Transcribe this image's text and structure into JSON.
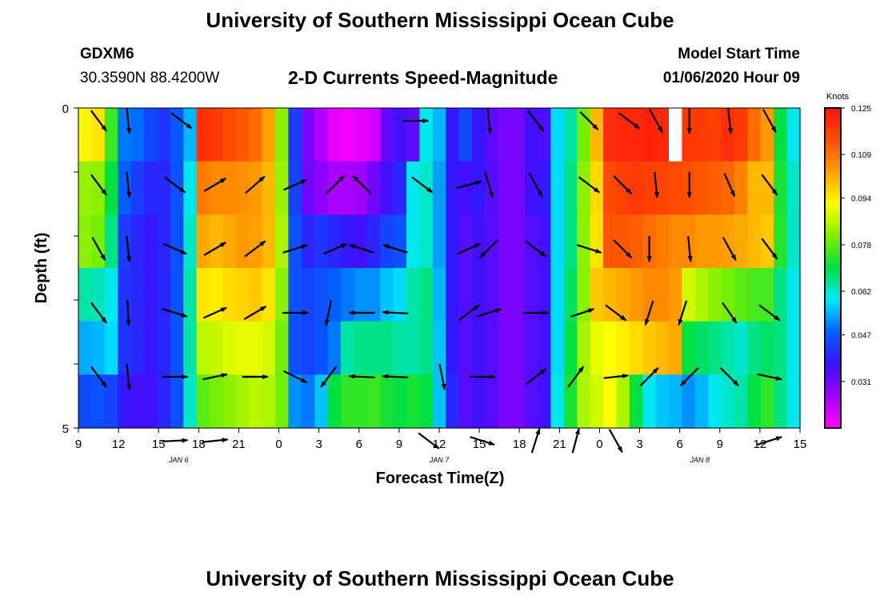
{
  "header": {
    "title_top": "University of Southern Mississippi Ocean Cube",
    "title_bottom": "University of Southern Mississippi Ocean Cube",
    "station": "GDXM6",
    "coords": "30.3590N 88.4200W",
    "subtitle": "2-D Currents Speed-Magnitude",
    "start_label": "Model Start Time",
    "start_value": "01/06/2020 Hour 09"
  },
  "chart_data": {
    "type": "heatmap",
    "title": "2-D Currents Speed-Magnitude",
    "xlabel": "Forecast Time(Z)",
    "ylabel": "Depth (ft)",
    "x_ticks": [
      "9",
      "12",
      "15",
      "18",
      "21",
      "0",
      "3",
      "6",
      "9",
      "12",
      "15",
      "18",
      "21",
      "0",
      "3",
      "6",
      "9",
      "12",
      "15"
    ],
    "x_hours": [
      0,
      3,
      6,
      9,
      12,
      15,
      18,
      21,
      24,
      27,
      30,
      33,
      36,
      39,
      42,
      45,
      48,
      51,
      54
    ],
    "date_labels": [
      {
        "label": "JAN 6",
        "hour": 7.5
      },
      {
        "label": "JAN 7",
        "hour": 27
      },
      {
        "label": "JAN 8",
        "hour": 46.5
      }
    ],
    "y_ticks": [
      "0",
      "",
      "",
      "",
      "",
      "5"
    ],
    "ylim": [
      0,
      5
    ],
    "xlim": [
      0,
      54
    ],
    "colorbar": {
      "unit": "Knots",
      "min": 0.015,
      "max": 0.125,
      "tick_labels": [
        "0.125",
        "0.109",
        "0.094",
        "0.078",
        "0.062",
        "0.047",
        "0.031"
      ],
      "colors": [
        "#ff00ff",
        "#a000ff",
        "#3a10ff",
        "#0060ff",
        "#00e8ff",
        "#00e040",
        "#80f000",
        "#ffff00",
        "#ffa000",
        "#ff5000",
        "#ff1010"
      ]
    },
    "speed_knots": [
      [
        0.093,
        0.095,
        0.075,
        0.05,
        0.049,
        0.045,
        0.042,
        0.047,
        0.055,
        0.12,
        0.118,
        0.115,
        0.113,
        0.11,
        0.103,
        0.082,
        0.043,
        0.03,
        0.024,
        0.018,
        0.016,
        0.018,
        0.02,
        0.032,
        0.036,
        0.033,
        0.06,
        0.055,
        0.038,
        0.045,
        0.038,
        0.033,
        0.03,
        0.03,
        0.036,
        0.035,
        0.058,
        0.064,
        0.08,
        0.1,
        0.12,
        0.121,
        0.121,
        0.122,
        0.121,
        0.12,
        0.118,
        0.118,
        0.117,
        0.12,
        0.118,
        0.11,
        0.104,
        0.07,
        0.06
      ],
      [
        0.083,
        0.082,
        0.07,
        0.048,
        0.043,
        0.04,
        0.04,
        0.046,
        0.06,
        0.108,
        0.106,
        0.106,
        0.105,
        0.104,
        0.1,
        0.083,
        0.044,
        0.031,
        0.028,
        0.025,
        0.025,
        0.026,
        0.031,
        0.036,
        0.04,
        0.06,
        0.062,
        0.053,
        0.038,
        0.036,
        0.038,
        0.034,
        0.03,
        0.03,
        0.036,
        0.038,
        0.058,
        0.066,
        0.082,
        0.096,
        0.115,
        0.117,
        0.118,
        0.117,
        0.116,
        0.115,
        0.114,
        0.113,
        0.112,
        0.111,
        0.107,
        0.1,
        0.1,
        0.072,
        0.062
      ],
      [
        0.082,
        0.08,
        0.066,
        0.043,
        0.04,
        0.038,
        0.04,
        0.046,
        0.062,
        0.102,
        0.1,
        0.102,
        0.104,
        0.103,
        0.1,
        0.085,
        0.046,
        0.04,
        0.042,
        0.04,
        0.038,
        0.036,
        0.04,
        0.044,
        0.046,
        0.06,
        0.062,
        0.053,
        0.038,
        0.034,
        0.036,
        0.034,
        0.03,
        0.03,
        0.034,
        0.036,
        0.058,
        0.066,
        0.082,
        0.095,
        0.113,
        0.113,
        0.112,
        0.11,
        0.108,
        0.106,
        0.106,
        0.104,
        0.104,
        0.103,
        0.102,
        0.1,
        0.098,
        0.073,
        0.062
      ],
      [
        0.064,
        0.063,
        0.06,
        0.042,
        0.04,
        0.038,
        0.04,
        0.046,
        0.064,
        0.095,
        0.094,
        0.096,
        0.097,
        0.098,
        0.095,
        0.082,
        0.046,
        0.044,
        0.046,
        0.048,
        0.05,
        0.052,
        0.052,
        0.056,
        0.058,
        0.064,
        0.066,
        0.055,
        0.038,
        0.034,
        0.036,
        0.034,
        0.03,
        0.03,
        0.034,
        0.036,
        0.058,
        0.068,
        0.082,
        0.098,
        0.1,
        0.102,
        0.104,
        0.106,
        0.106,
        0.104,
        0.088,
        0.085,
        0.082,
        0.08,
        0.078,
        0.076,
        0.076,
        0.066,
        0.06
      ],
      [
        0.054,
        0.055,
        0.058,
        0.042,
        0.04,
        0.038,
        0.04,
        0.046,
        0.064,
        0.086,
        0.087,
        0.089,
        0.09,
        0.09,
        0.088,
        0.08,
        0.046,
        0.044,
        0.046,
        0.05,
        0.064,
        0.066,
        0.066,
        0.066,
        0.064,
        0.064,
        0.066,
        0.056,
        0.038,
        0.034,
        0.036,
        0.034,
        0.03,
        0.03,
        0.034,
        0.036,
        0.058,
        0.07,
        0.084,
        0.09,
        0.092,
        0.094,
        0.096,
        0.098,
        0.1,
        0.102,
        0.07,
        0.068,
        0.066,
        0.064,
        0.062,
        0.066,
        0.068,
        0.066,
        0.06
      ],
      [
        0.045,
        0.046,
        0.044,
        0.038,
        0.036,
        0.036,
        0.04,
        0.046,
        0.062,
        0.078,
        0.08,
        0.082,
        0.084,
        0.086,
        0.085,
        0.08,
        0.052,
        0.05,
        0.056,
        0.07,
        0.074,
        0.074,
        0.075,
        0.072,
        0.07,
        0.072,
        0.07,
        0.056,
        0.04,
        0.034,
        0.036,
        0.034,
        0.03,
        0.03,
        0.034,
        0.036,
        0.06,
        0.072,
        0.085,
        0.088,
        0.092,
        0.085,
        0.07,
        0.06,
        0.056,
        0.055,
        0.052,
        0.055,
        0.06,
        0.062,
        0.064,
        0.07,
        0.074,
        0.066,
        0.06
      ]
    ],
    "missing_cells": [
      [
        0,
        45
      ]
    ],
    "arrows": [
      {
        "hour": 0.8,
        "depth": 0,
        "u": 0.6,
        "v": -0.8
      },
      {
        "hour": 3.0,
        "depth": 0,
        "u": 0.1,
        "v": -1
      },
      {
        "hour": 7.0,
        "depth": 0,
        "u": 0.8,
        "v": -0.6
      },
      {
        "hour": 24.5,
        "depth": 0,
        "u": 1,
        "v": 0
      },
      {
        "hour": 30.0,
        "depth": 0,
        "u": 0.1,
        "v": -1
      },
      {
        "hour": 33.5,
        "depth": 0,
        "u": 0.6,
        "v": -0.8
      },
      {
        "hour": 37.5,
        "depth": 0,
        "u": 0.7,
        "v": -0.7
      },
      {
        "hour": 40.5,
        "depth": 0,
        "u": 0.8,
        "v": -0.6
      },
      {
        "hour": 42.5,
        "depth": 0,
        "u": 0.5,
        "v": -0.9
      },
      {
        "hour": 45.0,
        "depth": 0,
        "u": 0,
        "v": -1
      },
      {
        "hour": 48.0,
        "depth": 0,
        "u": 0.1,
        "v": -1
      },
      {
        "hour": 51.0,
        "depth": 0,
        "u": 0.5,
        "v": -0.9
      },
      {
        "hour": 0.8,
        "depth": 1,
        "u": 0.6,
        "v": -0.8
      },
      {
        "hour": 3.0,
        "depth": 1,
        "u": 0.1,
        "v": -1
      },
      {
        "hour": 6.5,
        "depth": 1,
        "u": 0.8,
        "v": -0.6
      },
      {
        "hour": 9.5,
        "depth": 1,
        "u": 0.85,
        "v": 0.5
      },
      {
        "hour": 12.5,
        "depth": 1,
        "u": 0.75,
        "v": 0.65
      },
      {
        "hour": 15.5,
        "depth": 1,
        "u": 0.9,
        "v": 0.4
      },
      {
        "hour": 18.5,
        "depth": 1,
        "u": 0.7,
        "v": 0.7
      },
      {
        "hour": 20.5,
        "depth": 1,
        "u": -0.7,
        "v": 0.7
      },
      {
        "hour": 25.0,
        "depth": 1,
        "u": 0.8,
        "v": -0.6
      },
      {
        "hour": 28.5,
        "depth": 1,
        "u": 0.95,
        "v": 0.25
      },
      {
        "hour": 30.0,
        "depth": 1,
        "u": 0.3,
        "v": -1
      },
      {
        "hour": 33.5,
        "depth": 1,
        "u": 0.5,
        "v": -0.9
      },
      {
        "hour": 37.5,
        "depth": 1,
        "u": 0.8,
        "v": -0.6
      },
      {
        "hour": 40.0,
        "depth": 1,
        "u": 0.7,
        "v": -0.7
      },
      {
        "hour": 42.5,
        "depth": 1,
        "u": 0.1,
        "v": -1
      },
      {
        "hour": 45.0,
        "depth": 1,
        "u": 0,
        "v": -1
      },
      {
        "hour": 48.0,
        "depth": 1,
        "u": 0.4,
        "v": -0.9
      },
      {
        "hour": 51.0,
        "depth": 1,
        "u": 0.6,
        "v": -0.8
      },
      {
        "hour": 0.8,
        "depth": 2,
        "u": 0.5,
        "v": -0.9
      },
      {
        "hour": 3.0,
        "depth": 2,
        "u": 0.1,
        "v": -1
      },
      {
        "hour": 6.5,
        "depth": 2,
        "u": 0.9,
        "v": -0.4
      },
      {
        "hour": 9.5,
        "depth": 2,
        "u": 0.85,
        "v": 0.5
      },
      {
        "hour": 12.5,
        "depth": 2,
        "u": 0.8,
        "v": 0.6
      },
      {
        "hour": 15.5,
        "depth": 2,
        "u": 0.95,
        "v": 0.3
      },
      {
        "hour": 18.5,
        "depth": 2,
        "u": 0.9,
        "v": 0.4
      },
      {
        "hour": 20.5,
        "depth": 2,
        "u": -0.95,
        "v": 0.3
      },
      {
        "hour": 23.0,
        "depth": 2,
        "u": -0.95,
        "v": 0.3
      },
      {
        "hour": 28.5,
        "depth": 2,
        "u": 0.9,
        "v": 0.4
      },
      {
        "hour": 30.0,
        "depth": 2,
        "u": -0.7,
        "v": -0.7
      },
      {
        "hour": 33.5,
        "depth": 2,
        "u": 0.8,
        "v": -0.6
      },
      {
        "hour": 37.5,
        "depth": 2,
        "u": 0.95,
        "v": -0.3
      },
      {
        "hour": 40.0,
        "depth": 2,
        "u": 0.7,
        "v": -0.7
      },
      {
        "hour": 42.0,
        "depth": 2,
        "u": 0,
        "v": -1
      },
      {
        "hour": 45.0,
        "depth": 2,
        "u": 0.1,
        "v": -1
      },
      {
        "hour": 48.0,
        "depth": 2,
        "u": 0.5,
        "v": -0.9
      },
      {
        "hour": 51.0,
        "depth": 2,
        "u": 0.6,
        "v": -0.8
      },
      {
        "hour": 0.8,
        "depth": 3,
        "u": 0.6,
        "v": -0.8
      },
      {
        "hour": 3.0,
        "depth": 3,
        "u": 0.05,
        "v": -1
      },
      {
        "hour": 6.5,
        "depth": 3,
        "u": 0.95,
        "v": -0.3
      },
      {
        "hour": 9.5,
        "depth": 3,
        "u": 0.9,
        "v": 0.4
      },
      {
        "hour": 12.5,
        "depth": 3,
        "u": 0.85,
        "v": 0.5
      },
      {
        "hour": 15.5,
        "depth": 3,
        "u": 1,
        "v": 0
      },
      {
        "hour": 18.0,
        "depth": 3,
        "u": -0.2,
        "v": -1
      },
      {
        "hour": 20.5,
        "depth": 3,
        "u": -1,
        "v": 0
      },
      {
        "hour": 23.0,
        "depth": 3,
        "u": -1,
        "v": 0.05
      },
      {
        "hour": 28.5,
        "depth": 3,
        "u": 0.8,
        "v": 0.6
      },
      {
        "hour": 30.0,
        "depth": 3,
        "u": 0.95,
        "v": 0.3
      },
      {
        "hour": 33.5,
        "depth": 3,
        "u": 1,
        "v": 0
      },
      {
        "hour": 37.0,
        "depth": 3,
        "u": 0.9,
        "v": 0.3
      },
      {
        "hour": 39.5,
        "depth": 3,
        "u": 0.8,
        "v": -0.6
      },
      {
        "hour": 42.0,
        "depth": 3,
        "u": -0.3,
        "v": -0.95
      },
      {
        "hour": 44.5,
        "depth": 3,
        "u": -0.3,
        "v": -0.95
      },
      {
        "hour": 48.0,
        "depth": 3,
        "u": 0.55,
        "v": -0.8
      },
      {
        "hour": 51.0,
        "depth": 3,
        "u": 0.8,
        "v": -0.6
      },
      {
        "hour": 0.8,
        "depth": 4,
        "u": 0.6,
        "v": -0.8
      },
      {
        "hour": 3.0,
        "depth": 4,
        "u": 0.1,
        "v": -1
      },
      {
        "hour": 6.5,
        "depth": 4,
        "u": 1,
        "v": 0
      },
      {
        "hour": 9.5,
        "depth": 4,
        "u": 0.95,
        "v": 0.2
      },
      {
        "hour": 12.5,
        "depth": 4,
        "u": 1,
        "v": 0
      },
      {
        "hour": 15.5,
        "depth": 4,
        "u": 0.9,
        "v": -0.45
      },
      {
        "hour": 18.0,
        "depth": 4,
        "u": -0.6,
        "v": -0.8
      },
      {
        "hour": 20.5,
        "depth": 4,
        "u": -1,
        "v": 0.05
      },
      {
        "hour": 23.0,
        "depth": 4,
        "u": -1,
        "v": 0.05
      },
      {
        "hour": 26.5,
        "depth": 4,
        "u": 0.2,
        "v": -1
      },
      {
        "hour": 29.5,
        "depth": 4,
        "u": 1,
        "v": 0
      },
      {
        "hour": 33.5,
        "depth": 4,
        "u": 0.8,
        "v": 0.6
      },
      {
        "hour": 36.5,
        "depth": 4,
        "u": 0.6,
        "v": 0.8
      },
      {
        "hour": 39.5,
        "depth": 4,
        "u": 0.95,
        "v": 0.1
      },
      {
        "hour": 42.0,
        "depth": 4,
        "u": 0.7,
        "v": 0.7
      },
      {
        "hour": 45.0,
        "depth": 4,
        "u": -0.7,
        "v": -0.7
      },
      {
        "hour": 48.0,
        "depth": 4,
        "u": 0.7,
        "v": -0.7
      },
      {
        "hour": 51.0,
        "depth": 4,
        "u": 0.95,
        "v": -0.2
      },
      {
        "hour": 6.5,
        "depth": 5,
        "u": 1,
        "v": 0.05
      },
      {
        "hour": 9.5,
        "depth": 5,
        "u": 1,
        "v": 0.1
      },
      {
        "hour": 25.5,
        "depth": 5,
        "u": 0.8,
        "v": -0.6
      },
      {
        "hour": 29.5,
        "depth": 5,
        "u": 0.95,
        "v": -0.3
      },
      {
        "hour": 33.5,
        "depth": 5,
        "u": 0.3,
        "v": 0.95
      },
      {
        "hour": 36.5,
        "depth": 5,
        "u": 0.25,
        "v": 0.95
      },
      {
        "hour": 39.5,
        "depth": 5,
        "u": 0.5,
        "v": -0.9
      },
      {
        "hour": 51.0,
        "depth": 5,
        "u": 0.95,
        "v": 0.3
      }
    ]
  }
}
